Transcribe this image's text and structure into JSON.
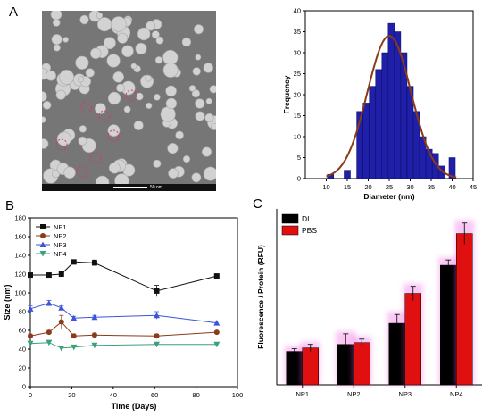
{
  "panels": {
    "a": {
      "letter": "A"
    },
    "b": {
      "letter": "B"
    },
    "c": {
      "letter": "C"
    }
  },
  "scale_bar": {
    "label": "50 nm"
  },
  "colors": {
    "histogram_bar": "#1f1fa8",
    "fit_curve": "#8b3a1a",
    "np1": "#111111",
    "np2": "#8b3a1a",
    "np3": "#3b55d6",
    "np4": "#3aa17a",
    "di_bar": "#000000",
    "pbs_bar": "#e01010",
    "glow": "#f060e0"
  },
  "chart_data": [
    {
      "type": "bar",
      "id": "histogram",
      "xlabel": "Diameter (nm)",
      "ylabel": "Frequency",
      "xlim": [
        5,
        45
      ],
      "ylim": [
        0,
        40
      ],
      "xticks": [
        10,
        15,
        20,
        25,
        30,
        35,
        40,
        45
      ],
      "yticks": [
        0,
        5,
        10,
        15,
        20,
        25,
        30,
        35,
        40
      ],
      "bin_width": 1.5,
      "bins": [
        {
          "x": 11,
          "value": 1
        },
        {
          "x": 15,
          "value": 2
        },
        {
          "x": 18,
          "value": 16
        },
        {
          "x": 19.5,
          "value": 18
        },
        {
          "x": 21,
          "value": 22
        },
        {
          "x": 22.5,
          "value": 26
        },
        {
          "x": 24,
          "value": 30
        },
        {
          "x": 25.5,
          "value": 37
        },
        {
          "x": 27,
          "value": 35
        },
        {
          "x": 28.5,
          "value": 30
        },
        {
          "x": 30,
          "value": 22
        },
        {
          "x": 31.5,
          "value": 16
        },
        {
          "x": 33,
          "value": 10
        },
        {
          "x": 34.5,
          "value": 7
        },
        {
          "x": 36,
          "value": 6
        },
        {
          "x": 37.5,
          "value": 3
        },
        {
          "x": 40,
          "value": 5
        }
      ],
      "fit": {
        "type": "gaussian",
        "amplitude": 34,
        "mean": 25,
        "sigma": 5.2,
        "x_range": [
          10,
          41
        ]
      }
    },
    {
      "type": "line",
      "id": "size",
      "xlabel": "Time (Days)",
      "ylabel": "Size (nm)",
      "xlim": [
        0,
        100
      ],
      "ylim": [
        0,
        180
      ],
      "xticks": [
        0,
        20,
        40,
        60,
        80,
        100
      ],
      "yticks": [
        0,
        20,
        40,
        60,
        80,
        100,
        120,
        140,
        160,
        180
      ],
      "legend_position": "top-left",
      "series": [
        {
          "name": "NP1",
          "marker": "square",
          "x": [
            0,
            9,
            15,
            21,
            31,
            61,
            90
          ],
          "y": [
            119,
            119,
            120,
            133,
            132,
            102,
            118
          ],
          "err": [
            2,
            2,
            3,
            2,
            3,
            6,
            1
          ]
        },
        {
          "name": "NP2",
          "marker": "circle",
          "x": [
            0,
            9,
            15,
            21,
            31,
            61,
            90
          ],
          "y": [
            54,
            58,
            69,
            54,
            55,
            54,
            58
          ],
          "err": [
            2,
            2,
            7,
            2,
            2,
            2,
            1
          ]
        },
        {
          "name": "NP3",
          "marker": "triangle-up",
          "x": [
            0,
            9,
            15,
            21,
            31,
            61,
            90
          ],
          "y": [
            83,
            89,
            84,
            73,
            74,
            76,
            68
          ],
          "err": [
            3,
            3,
            2,
            2,
            2,
            4,
            2
          ]
        },
        {
          "name": "NP4",
          "marker": "triangle-down",
          "x": [
            0,
            9,
            15,
            21,
            31,
            61,
            90
          ],
          "y": [
            46,
            47,
            41,
            42,
            44,
            45,
            45
          ],
          "err": [
            1,
            2,
            2,
            1,
            1,
            1,
            2
          ]
        }
      ]
    },
    {
      "type": "bar",
      "id": "fluorescence",
      "ylabel": "Fluorescence / Protein (RFU)",
      "ylim": [
        0,
        1
      ],
      "legend_position": "top-left",
      "categories": [
        "NP1",
        "NP2",
        "NP3",
        "NP4"
      ],
      "series": [
        {
          "name": "DI",
          "values": [
            0.19,
            0.23,
            0.35,
            0.68
          ],
          "err": [
            0.015,
            0.06,
            0.05,
            0.03
          ]
        },
        {
          "name": "PBS",
          "values": [
            0.21,
            0.24,
            0.52,
            0.86
          ],
          "err": [
            0.02,
            0.02,
            0.04,
            0.06
          ]
        }
      ]
    }
  ]
}
